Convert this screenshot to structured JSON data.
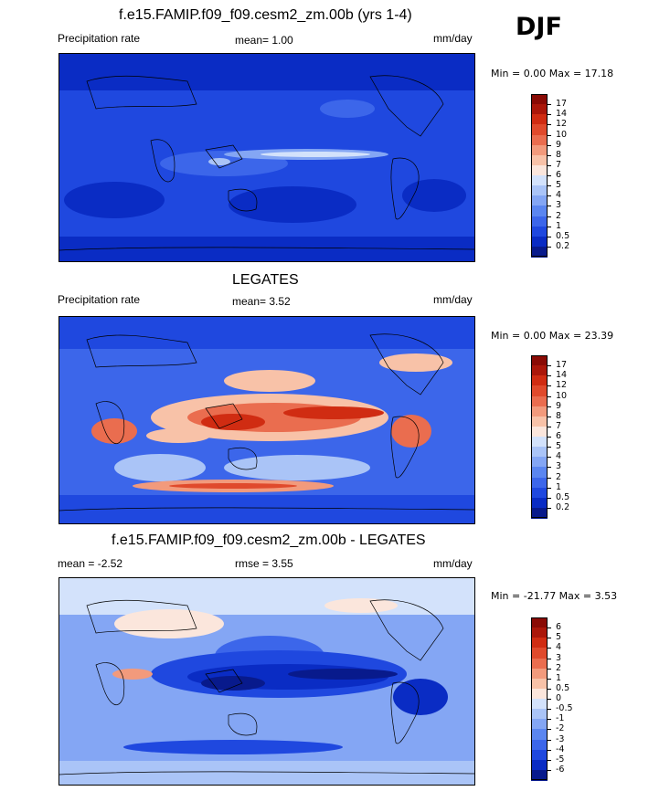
{
  "season": "DJF",
  "colors": {
    "precip": [
      "#081a8c",
      "#0a2cc4",
      "#1f48df",
      "#3c66ea",
      "#5b86f0",
      "#84a6f4",
      "#aac4f7",
      "#d3e2fb",
      "#fbe6dc",
      "#f8c2a8",
      "#f29a7c",
      "#ea6d4f",
      "#e04a2c",
      "#d02c12",
      "#ab170a",
      "#8a0b05"
    ],
    "diff": [
      "#081a8c",
      "#0a2cc4",
      "#1f48df",
      "#3c66ea",
      "#5b86f0",
      "#84a6f4",
      "#aac4f7",
      "#d3e2fb",
      "#fbe6dc",
      "#f8c2a8",
      "#f29a7c",
      "#ea6d4f",
      "#e04a2c",
      "#d02c12",
      "#ab170a",
      "#8a0b05"
    ]
  },
  "panels": [
    {
      "title": "f.e15.FAMIP.f09_f09.cesm2_zm.00b (yrs 1-4)",
      "left_label": "Precipitation rate",
      "center_label": "mean=   1.00",
      "units": "mm/day",
      "minmax": "Min =   0.00 Max =  17.18",
      "colorbar_labels": [
        "17",
        "14",
        "12",
        "10",
        "9",
        "8",
        "7",
        "6",
        "5",
        "4",
        "3",
        "2",
        "1",
        "0.5",
        "0.2"
      ]
    },
    {
      "title": "LEGATES",
      "left_label": "Precipitation rate",
      "center_label": "mean=   3.52",
      "units": "mm/day",
      "minmax": "Min =   0.00 Max =  23.39",
      "colorbar_labels": [
        "17",
        "14",
        "12",
        "10",
        "9",
        "8",
        "7",
        "6",
        "5",
        "4",
        "3",
        "2",
        "1",
        "0.5",
        "0.2"
      ]
    },
    {
      "title": "f.e15.FAMIP.f09_f09.cesm2_zm.00b - LEGATES",
      "left_label": "mean =  -2.52",
      "center_label": "rmse =   3.55",
      "units": "mm/day",
      "minmax": "Min = -21.77 Max =   3.53",
      "colorbar_labels": [
        "6",
        "5",
        "4",
        "3",
        "2",
        "1",
        "0.5",
        "0",
        "-0.5",
        "-1",
        "-2",
        "-3",
        "-4",
        "-5",
        "-6"
      ]
    }
  ],
  "chart_data": [
    {
      "type": "heatmap",
      "title": "f.e15.FAMIP.f09_f09.cesm2_zm.00b (yrs 1-4)",
      "variable": "Precipitation rate",
      "units": "mm/day",
      "mean": 1.0,
      "min": 0.0,
      "max": 17.18,
      "levels": [
        0.2,
        0.5,
        1,
        2,
        3,
        4,
        5,
        6,
        7,
        8,
        9,
        10,
        12,
        14,
        17
      ]
    },
    {
      "type": "heatmap",
      "title": "LEGATES",
      "variable": "Precipitation rate",
      "units": "mm/day",
      "mean": 3.52,
      "min": 0.0,
      "max": 23.39,
      "levels": [
        0.2,
        0.5,
        1,
        2,
        3,
        4,
        5,
        6,
        7,
        8,
        9,
        10,
        12,
        14,
        17
      ]
    },
    {
      "type": "heatmap",
      "title": "f.e15.FAMIP.f09_f09.cesm2_zm.00b - LEGATES",
      "units": "mm/day",
      "mean": -2.52,
      "rmse": 3.55,
      "min": -21.77,
      "max": 3.53,
      "levels": [
        -6,
        -5,
        -4,
        -3,
        -2,
        -1,
        -0.5,
        0,
        0.5,
        1,
        2,
        3,
        4,
        5,
        6
      ]
    }
  ]
}
